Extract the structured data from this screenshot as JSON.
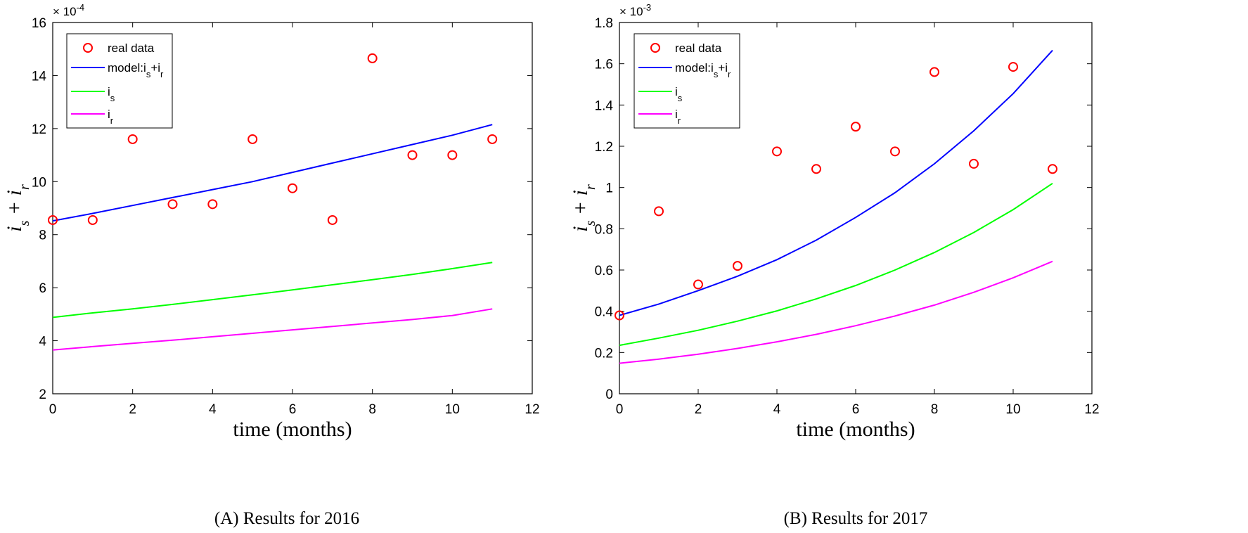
{
  "chart_data": [
    {
      "type": "line",
      "caption": "(A) Results for 2016",
      "xlabel": "time (months)",
      "ylabel": "i_s + i_r",
      "y_exponent": "× 10^-4",
      "xlim": [
        0,
        12
      ],
      "ylim": [
        2,
        16
      ],
      "xticks": [
        0,
        2,
        4,
        6,
        8,
        10,
        12
      ],
      "yticks": [
        2,
        4,
        6,
        8,
        10,
        12,
        14,
        16
      ],
      "legend_position": "top-left",
      "scatter": {
        "name": "real data",
        "color": "#ff0000",
        "x": [
          0,
          1,
          2,
          3,
          4,
          5,
          6,
          7,
          8,
          9,
          10,
          11
        ],
        "y": [
          8.55,
          8.55,
          11.6,
          9.15,
          9.15,
          11.6,
          9.75,
          8.55,
          14.65,
          11.0,
          11.0,
          11.6
        ]
      },
      "series": [
        {
          "name": "model:i_s+i_r",
          "color": "#0000ff",
          "x": [
            0,
            1,
            2,
            3,
            4,
            5,
            6,
            7,
            8,
            9,
            10,
            11
          ],
          "y": [
            8.52,
            8.8,
            9.1,
            9.4,
            9.7,
            10.0,
            10.35,
            10.7,
            11.05,
            11.4,
            11.75,
            12.15
          ]
        },
        {
          "name": "i_s",
          "color": "#00ff00",
          "x": [
            0,
            1,
            2,
            3,
            4,
            5,
            6,
            7,
            8,
            9,
            10,
            11
          ],
          "y": [
            4.88,
            5.05,
            5.2,
            5.37,
            5.55,
            5.73,
            5.92,
            6.11,
            6.3,
            6.5,
            6.72,
            6.95
          ]
        },
        {
          "name": "i_r",
          "color": "#ff00ff",
          "x": [
            0,
            1,
            2,
            3,
            4,
            5,
            6,
            7,
            8,
            9,
            10,
            11
          ],
          "y": [
            3.65,
            3.78,
            3.9,
            4.02,
            4.15,
            4.28,
            4.41,
            4.54,
            4.67,
            4.8,
            4.95,
            5.2
          ]
        }
      ]
    },
    {
      "type": "line",
      "caption": "(B) Results for 2017",
      "xlabel": "time (months)",
      "ylabel": "i_s + i_r",
      "y_exponent": "× 10^-3",
      "xlim": [
        0,
        12
      ],
      "ylim": [
        0,
        1.8
      ],
      "xticks": [
        0,
        2,
        4,
        6,
        8,
        10,
        12
      ],
      "yticks": [
        0,
        0.2,
        0.4,
        0.6,
        0.8,
        1,
        1.2,
        1.4,
        1.6,
        1.8
      ],
      "legend_position": "top-left",
      "scatter": {
        "name": "real data",
        "color": "#ff0000",
        "x": [
          0,
          1,
          2,
          3,
          4,
          5,
          6,
          7,
          8,
          9,
          10,
          11
        ],
        "y": [
          0.38,
          0.885,
          0.53,
          0.62,
          1.175,
          1.09,
          1.295,
          1.175,
          1.56,
          1.115,
          1.585,
          1.09
        ]
      },
      "series": [
        {
          "name": "model:i_s+i_r",
          "color": "#0000ff",
          "x": [
            0,
            1,
            2,
            3,
            4,
            5,
            6,
            7,
            8,
            9,
            10,
            11
          ],
          "y": [
            0.38,
            0.435,
            0.5,
            0.57,
            0.65,
            0.745,
            0.855,
            0.975,
            1.115,
            1.275,
            1.455,
            1.665
          ]
        },
        {
          "name": "i_s",
          "color": "#00ff00",
          "x": [
            0,
            1,
            2,
            3,
            4,
            5,
            6,
            7,
            8,
            9,
            10,
            11
          ],
          "y": [
            0.235,
            0.27,
            0.308,
            0.352,
            0.402,
            0.46,
            0.525,
            0.6,
            0.685,
            0.782,
            0.893,
            1.02
          ]
        },
        {
          "name": "i_r",
          "color": "#ff00ff",
          "x": [
            0,
            1,
            2,
            3,
            4,
            5,
            6,
            7,
            8,
            9,
            10,
            11
          ],
          "y": [
            0.148,
            0.168,
            0.192,
            0.22,
            0.252,
            0.288,
            0.33,
            0.377,
            0.43,
            0.492,
            0.562,
            0.642
          ]
        }
      ]
    }
  ]
}
